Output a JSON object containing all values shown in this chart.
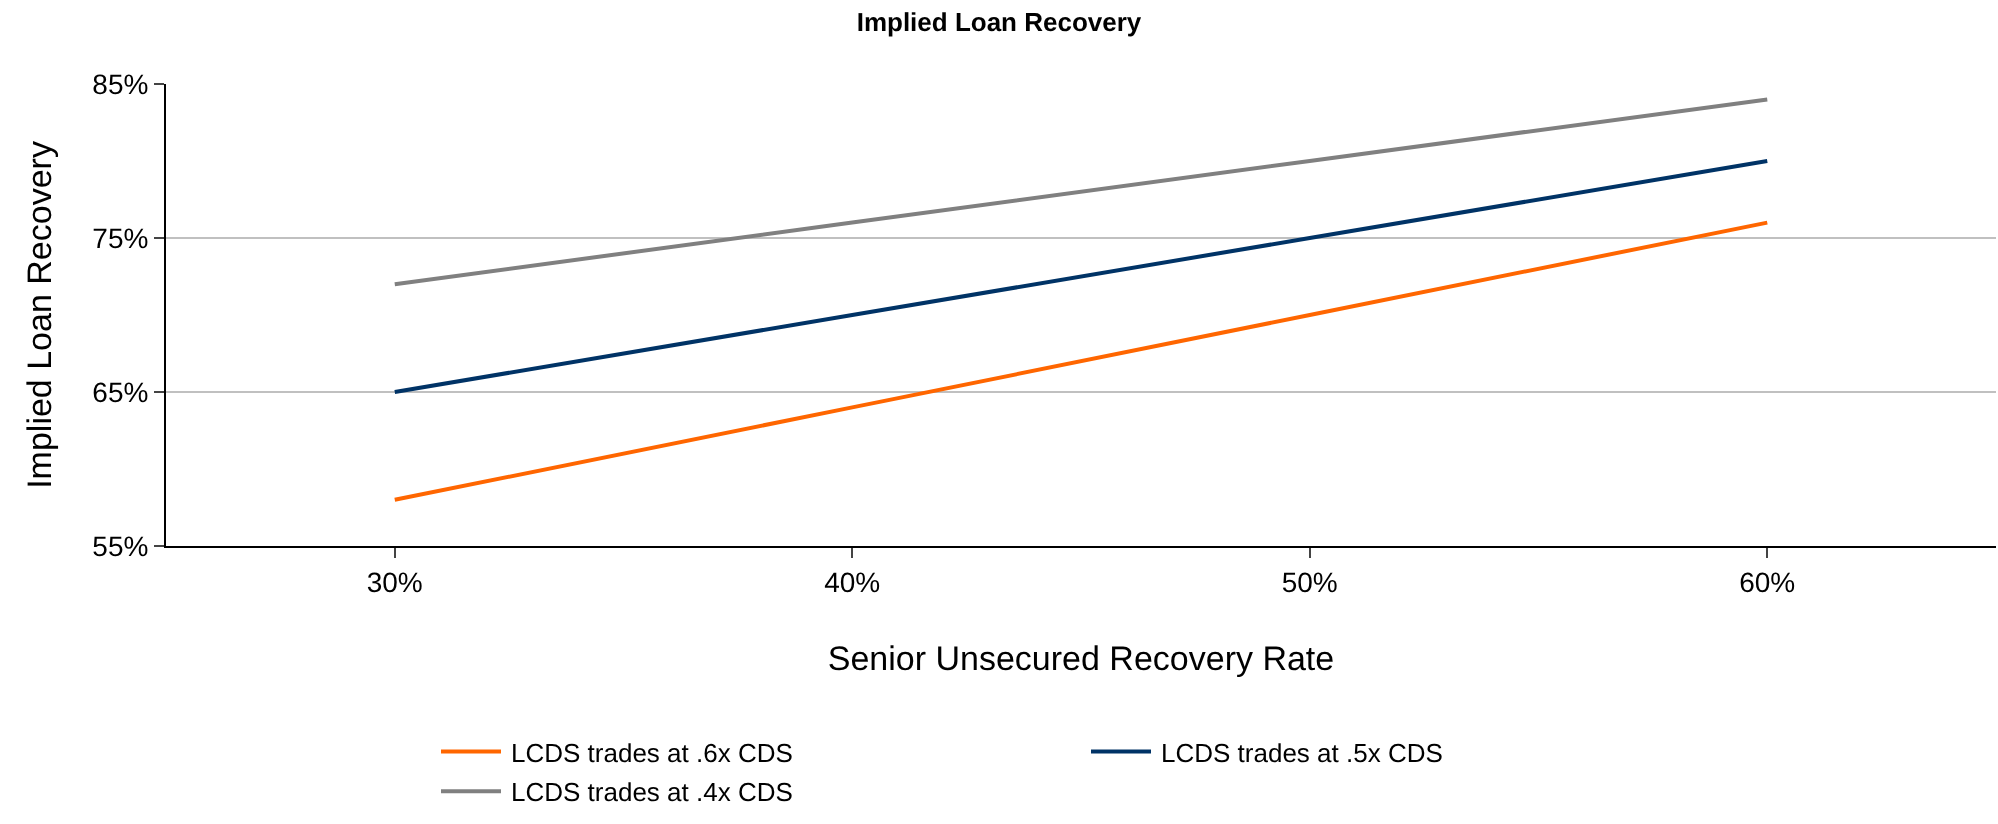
{
  "chart_data": {
    "type": "line",
    "title": "Implied Loan Recovery",
    "xlabel": "Senior Unsecured Recovery Rate",
    "ylabel": "Implied Loan Recovery",
    "categories": [
      "30%",
      "40%",
      "50%",
      "60%"
    ],
    "series": [
      {
        "name": "LCDS trades at .6x CDS",
        "color": "#ff6600",
        "values": [
          58,
          64,
          70,
          76
        ]
      },
      {
        "name": "LCDS trades at .5x CDS",
        "color": "#003366",
        "values": [
          65,
          70,
          75,
          80
        ]
      },
      {
        "name": "LCDS trades at .4x CDS",
        "color": "#808080",
        "values": [
          72,
          76,
          80,
          84
        ]
      }
    ],
    "ylim": [
      55,
      85
    ],
    "yticks": [
      {
        "value": 55,
        "label": "55%"
      },
      {
        "value": 65,
        "label": "65%"
      },
      {
        "value": 75,
        "label": "75%"
      },
      {
        "value": 85,
        "label": "85%"
      }
    ],
    "grid": "y",
    "legend": "bottom",
    "marker": "none",
    "line_style": "solid"
  }
}
